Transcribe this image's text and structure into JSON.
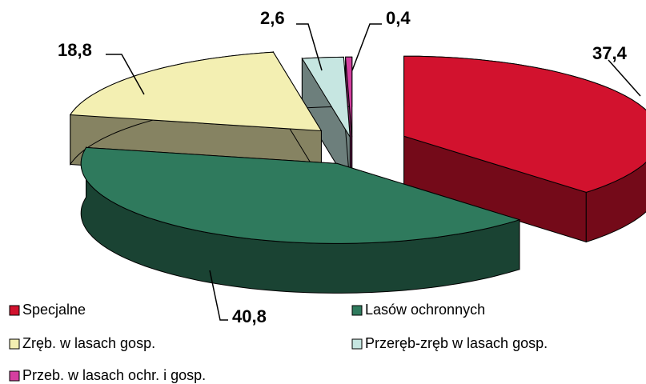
{
  "chart_data": {
    "type": "pie",
    "categories": [
      "Specjalne",
      "Lasów ochronnych",
      "Zręb. w lasach gosp.",
      "Przeręb-zręb w lasach gosp.",
      "Przeb. w lasach ochr. i gosp."
    ],
    "values": [
      37.4,
      40.8,
      18.8,
      2.6,
      0.4
    ],
    "value_labels": [
      "37,4",
      "40,8",
      "18,8",
      "2,6",
      "0,4"
    ],
    "colors": [
      "#d2122e",
      "#2f7a5d",
      "#f3efb2",
      "#c6e6e1",
      "#d43fa0"
    ]
  }
}
